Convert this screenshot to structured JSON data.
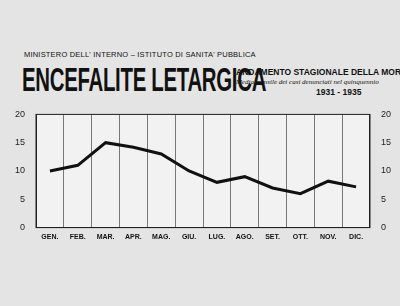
{
  "chart_data": {
    "type": "line",
    "title": "ENCEFALITE LETARGICA",
    "subtitle": "ANDAMENTO STAGIONALE DELLA MORBILITA'",
    "annotations": [
      "MINISTERO DELL' INTERNO – ISTITUTO DI SANITA' PUBBLICA",
      "Media mensile dei casi denunciati nel quinquennio",
      "1931 - 1935"
    ],
    "categories": [
      "GEN.",
      "FEB.",
      "MAR.",
      "APR.",
      "MAG.",
      "GIU.",
      "LUG.",
      "AGO.",
      "SET.",
      "OTT.",
      "NOV.",
      "DIC."
    ],
    "values": [
      10,
      11,
      15,
      14.2,
      13,
      10,
      8,
      9,
      7,
      6,
      8.2,
      7.2
    ],
    "color": "#111111",
    "ylim": [
      0,
      20
    ],
    "yticks": [
      0,
      5,
      10,
      15,
      20
    ],
    "y2lim": [
      0,
      20
    ],
    "y2ticks": [
      0,
      5,
      10,
      15,
      20
    ],
    "grid": true
  }
}
